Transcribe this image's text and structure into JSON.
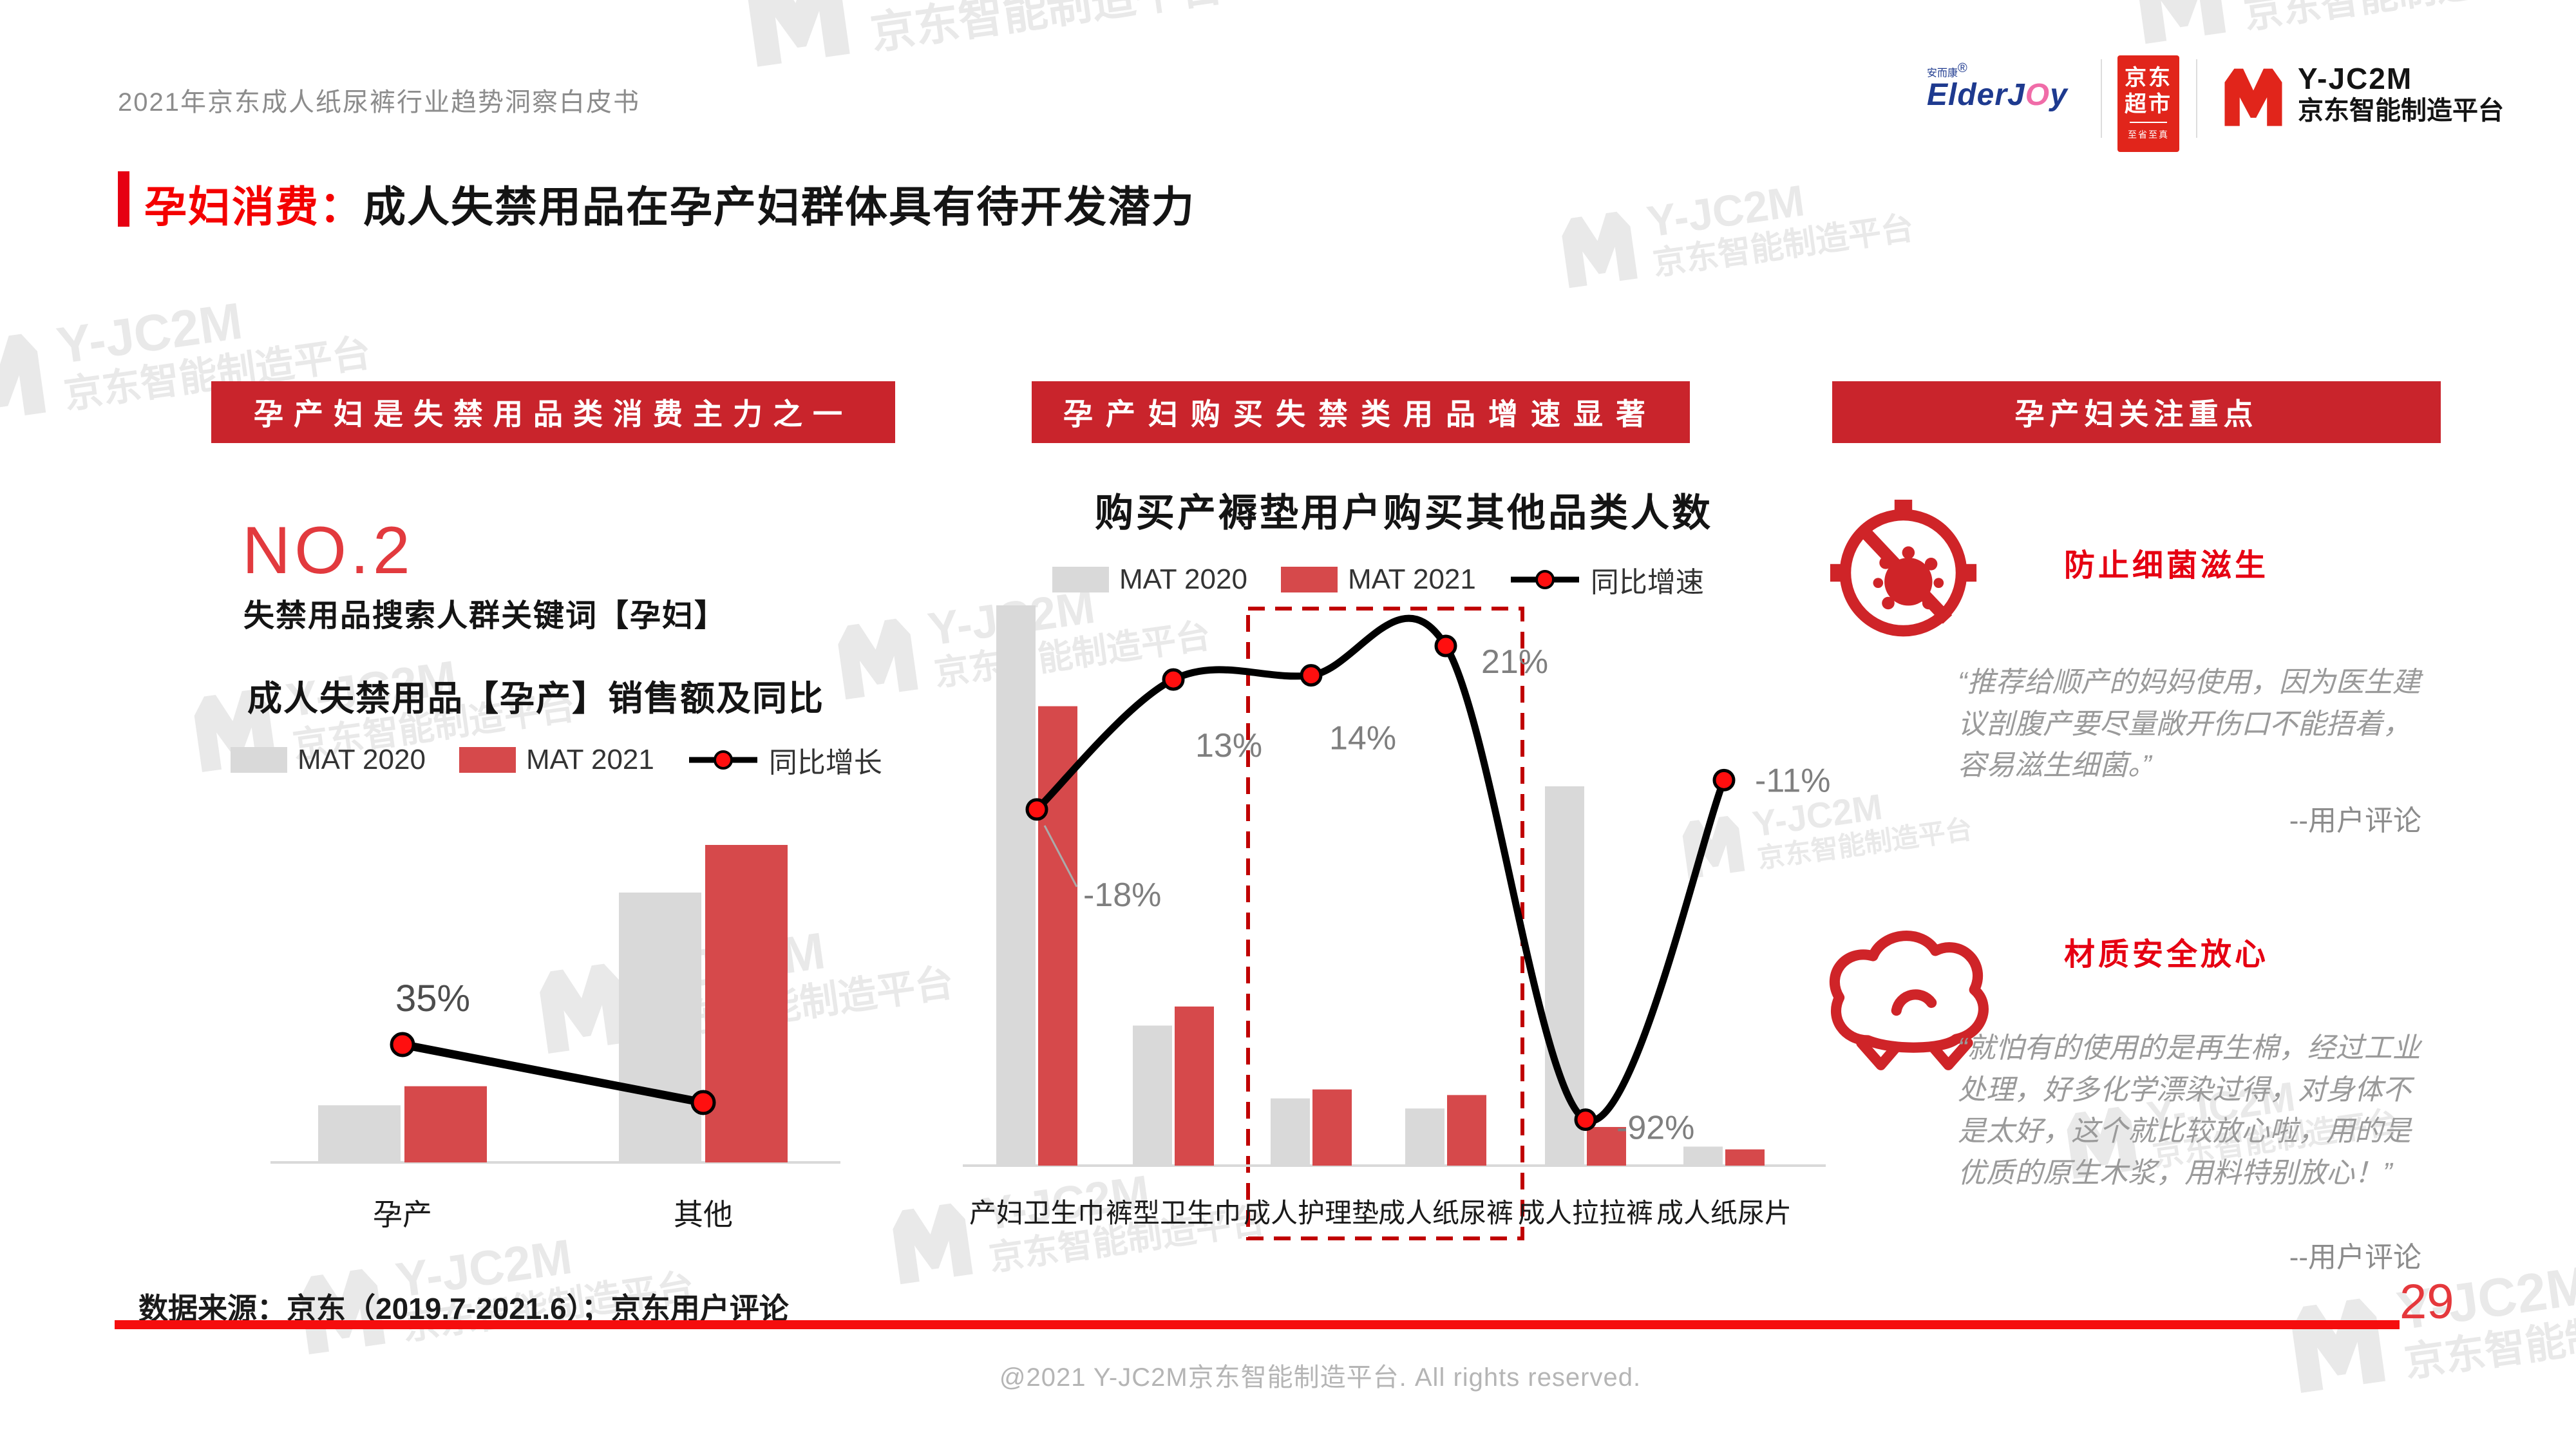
{
  "page": {
    "header_subtitle": "2021年京东成人纸尿裤行业趋势洞察白皮书",
    "title_prefix": "孕妇消费：",
    "title_rest": "成人失禁用品在孕产妇群体具有待开发潜力",
    "source_note": "数据来源：京东（2019.7-2021.6）；京东用户评论",
    "page_number": "29",
    "copyright": "@2021 Y-JC2M京东智能制造平台. All rights reserved."
  },
  "logos": {
    "elderjoy_cn": "安而康",
    "elderjoy_reg": "®",
    "elderjoy_en_a": "ElderJ",
    "elderjoy_en_o": "O",
    "elderjoy_en_b": "y",
    "jd_line1": "京东",
    "jd_line2": "超市",
    "jd_sub": "至省至真",
    "yjc2m_name": "Y-JC2M",
    "yjc2m_sub": "京东智能制造平台"
  },
  "watermark": {
    "text": "Y-JC2M",
    "subtext": "京东智能制造平台"
  },
  "sections": {
    "left": {
      "banner": "孕产妇是失禁用品类消费主力之一",
      "rank": "NO.2",
      "rank_caption": "失禁用品搜索人群关键词【孕妇】"
    },
    "middle": {
      "banner": "孕产妇购买失禁类用品增速显著"
    },
    "right": {
      "banner": "孕产妇关注重点",
      "point1_title": "防止细菌滋生",
      "point1_quote": "“推荐给顺产的妈妈使用，因为医生建议剖腹产要尽量敞开伤口不能捂着，容易滋生细菌。”",
      "point1_attribution": "--用户评论",
      "point2_title": "材质安全放心",
      "point2_quote": "“就怕有的使用的是再生棉，经过工业处理，好多化学漂染过得，对身体不是太好，这个就比较放心啦，用的是优质的原生木浆，用料特别放心！”",
      "point2_attribution": "--用户评论"
    }
  },
  "chart_data": [
    {
      "id": "maternity-sales",
      "type": "bar",
      "title": "成人失禁用品【孕产】销售额及同比",
      "categories": [
        "孕产",
        "其他"
      ],
      "series": [
        {
          "name": "MAT 2020",
          "color": "#D9D9D9",
          "values": [
            18,
            85
          ]
        },
        {
          "name": "MAT 2021",
          "color": "#D6494B",
          "values": [
            24,
            100
          ]
        }
      ],
      "line": {
        "name": "同比增长",
        "color": "#000000",
        "values": [
          35,
          21
        ],
        "labels": [
          "35%",
          ""
        ]
      },
      "xlabel": "",
      "ylabel": "",
      "axis_note": "no visible y axis; bar values are relative sales index (max=100)",
      "legend_position": "top",
      "grid": false
    },
    {
      "id": "cross-category-buyers",
      "type": "bar",
      "title": "购买产褥垫用户购买其他品类人数",
      "categories": [
        "产妇卫生巾",
        "裤型卫生巾",
        "成人护理垫",
        "成人纸尿裤",
        "成人拉拉裤",
        "成人纸尿片"
      ],
      "series": [
        {
          "name": "MAT 2020",
          "color": "#D9D9D9",
          "values": [
            100,
            25,
            12,
            10.2,
            67.7,
            3.4
          ]
        },
        {
          "name": "MAT 2021",
          "color": "#D6494B",
          "values": [
            82,
            28.4,
            13.6,
            12.6,
            6.9,
            2.9
          ]
        }
      ],
      "line": {
        "name": "同比增速",
        "color": "#000000",
        "values": [
          -18,
          13,
          14,
          21,
          -92,
          -11
        ],
        "labels": [
          "-18%",
          "13%",
          "14%",
          "21%",
          "-92%",
          "-11%"
        ]
      },
      "highlight_box_categories": [
        "成人护理垫",
        "成人纸尿裤"
      ],
      "xlabel": "",
      "ylabel": "",
      "axis_note": "no visible y axis; bar values are relative buyer counts (max=100)",
      "legend_position": "top",
      "grid": false
    }
  ]
}
